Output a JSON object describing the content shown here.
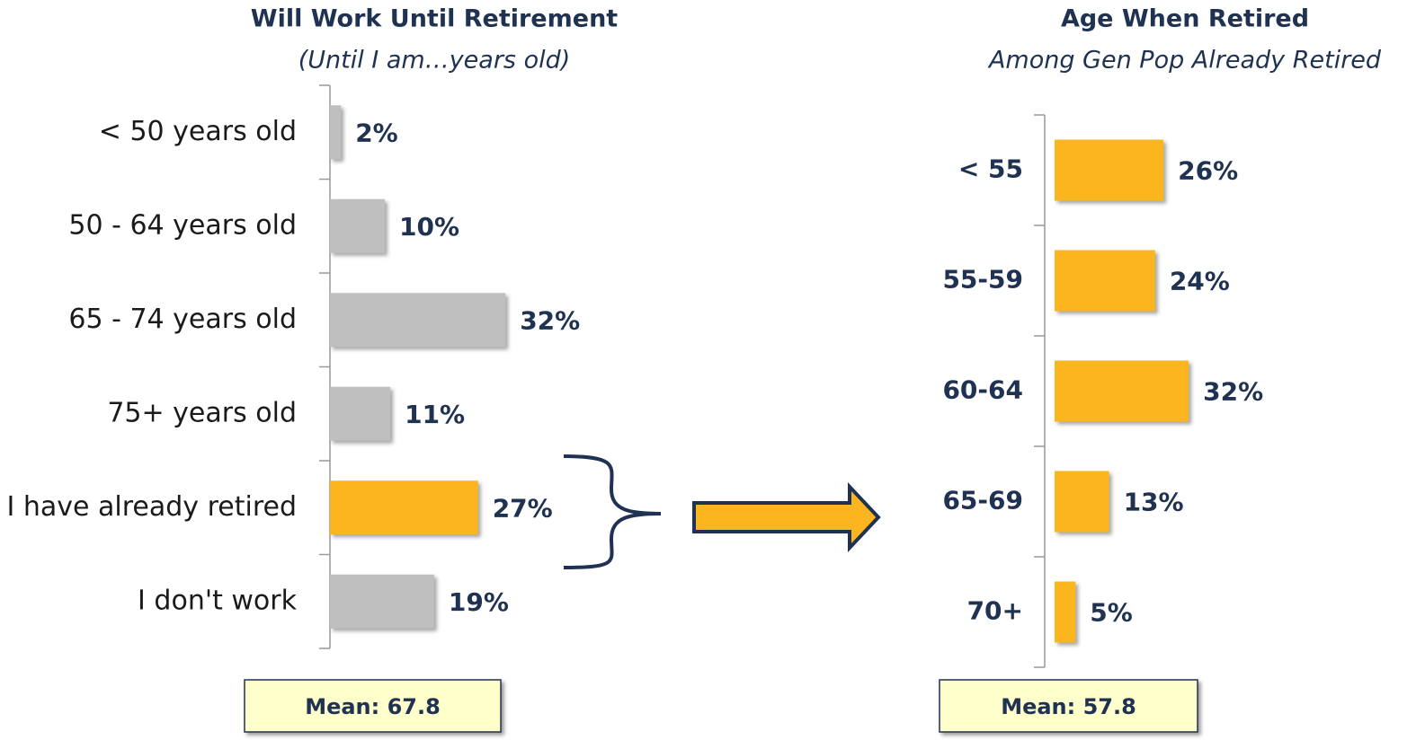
{
  "chart_data": [
    {
      "type": "bar",
      "orientation": "horizontal",
      "title": "Will Work Until Retirement",
      "subtitle": "(Until I am…years old)",
      "categories": [
        "< 50 years old",
        "50 - 64 years old",
        "65 - 74 years old",
        "75+ years old",
        "I have already retired",
        "I don't work"
      ],
      "values": [
        2,
        10,
        32,
        11,
        27,
        19
      ],
      "value_labels": [
        "2%",
        "10%",
        "32%",
        "11%",
        "27%",
        "19%"
      ],
      "colors": [
        "#bfbfbf",
        "#bfbfbf",
        "#bfbfbf",
        "#bfbfbf",
        "#fbb61f",
        "#bfbfbf"
      ],
      "annotation": "Mean: 67.8"
    },
    {
      "type": "bar",
      "orientation": "horizontal",
      "title": "Age When Retired",
      "subtitle": "Among Gen Pop Already Retired",
      "categories": [
        "< 55",
        "55-59",
        "60-64",
        "65-69",
        "70+"
      ],
      "values": [
        26,
        24,
        32,
        13,
        5
      ],
      "value_labels": [
        "26%",
        "24%",
        "32%",
        "13%",
        "5%"
      ],
      "colors": [
        "#fbb61f",
        "#fbb61f",
        "#fbb61f",
        "#fbb61f",
        "#fbb61f"
      ],
      "annotation": "Mean: 57.8"
    }
  ]
}
